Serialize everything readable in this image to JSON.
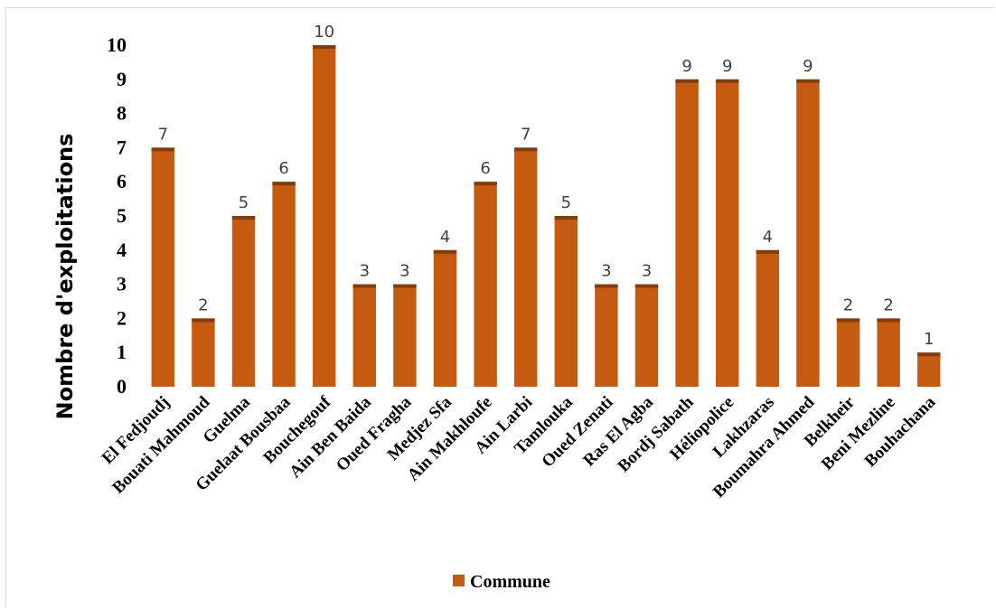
{
  "chart_data": {
    "type": "bar",
    "categories": [
      "El Fedjoudj",
      "Bouati Mahmoud",
      "Guelma",
      "Guelaat Bousbaa",
      "Bouchegouf",
      "Ain Ben Baida",
      "Oued Fragha",
      "Medjez Sfa",
      "Ain Makhloufe",
      "Ain Larbi",
      "Tamlouka",
      "Oued Zenati",
      "Ras El Agba",
      "Bordj Sabath",
      "Héliopolice",
      "Lakhzaras",
      "Boumahra Ahmed",
      "Belkheir",
      "Beni Mezline",
      "Bouhachana"
    ],
    "series": [
      {
        "name": "Commune",
        "values": [
          7,
          2,
          5,
          6,
          10,
          3,
          3,
          4,
          6,
          7,
          5,
          3,
          3,
          9,
          9,
          4,
          9,
          2,
          2,
          1
        ]
      }
    ],
    "ylabel": "Nombre d'exploitations",
    "xlabel": "",
    "ylim": [
      0,
      10
    ],
    "yticks": [
      0,
      1,
      2,
      3,
      4,
      5,
      6,
      7,
      8,
      9,
      10
    ],
    "grid": false,
    "legend_position": "bottom",
    "data_labels": true,
    "colors": {
      "bar": "#C55A11",
      "bar_top": "#843C0C"
    }
  }
}
